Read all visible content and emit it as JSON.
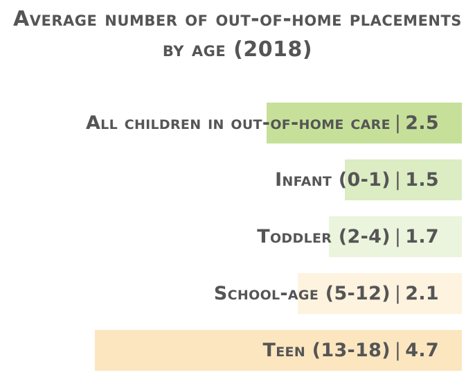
{
  "chart_data": {
    "type": "bar",
    "orientation": "horizontal",
    "title": "Average number of out-of-home placements by age (2018)",
    "categories": [
      "All children in out-of-home care",
      "Infant (0-1)",
      "Toddler (2-4)",
      "School-age (5-12)",
      "Teen (13-18)"
    ],
    "values": [
      2.5,
      1.5,
      1.7,
      2.1,
      4.7
    ],
    "value_labels": [
      "2.5",
      "1.5",
      "1.7",
      "2.1",
      "4.7"
    ],
    "separator": "|",
    "colors": [
      "#c6e09a",
      "#dcecc3",
      "#ebf4dd",
      "#fdf3df",
      "#fbe6bf"
    ],
    "xlim": [
      0,
      4.7
    ],
    "grid": false,
    "legend": "none"
  }
}
